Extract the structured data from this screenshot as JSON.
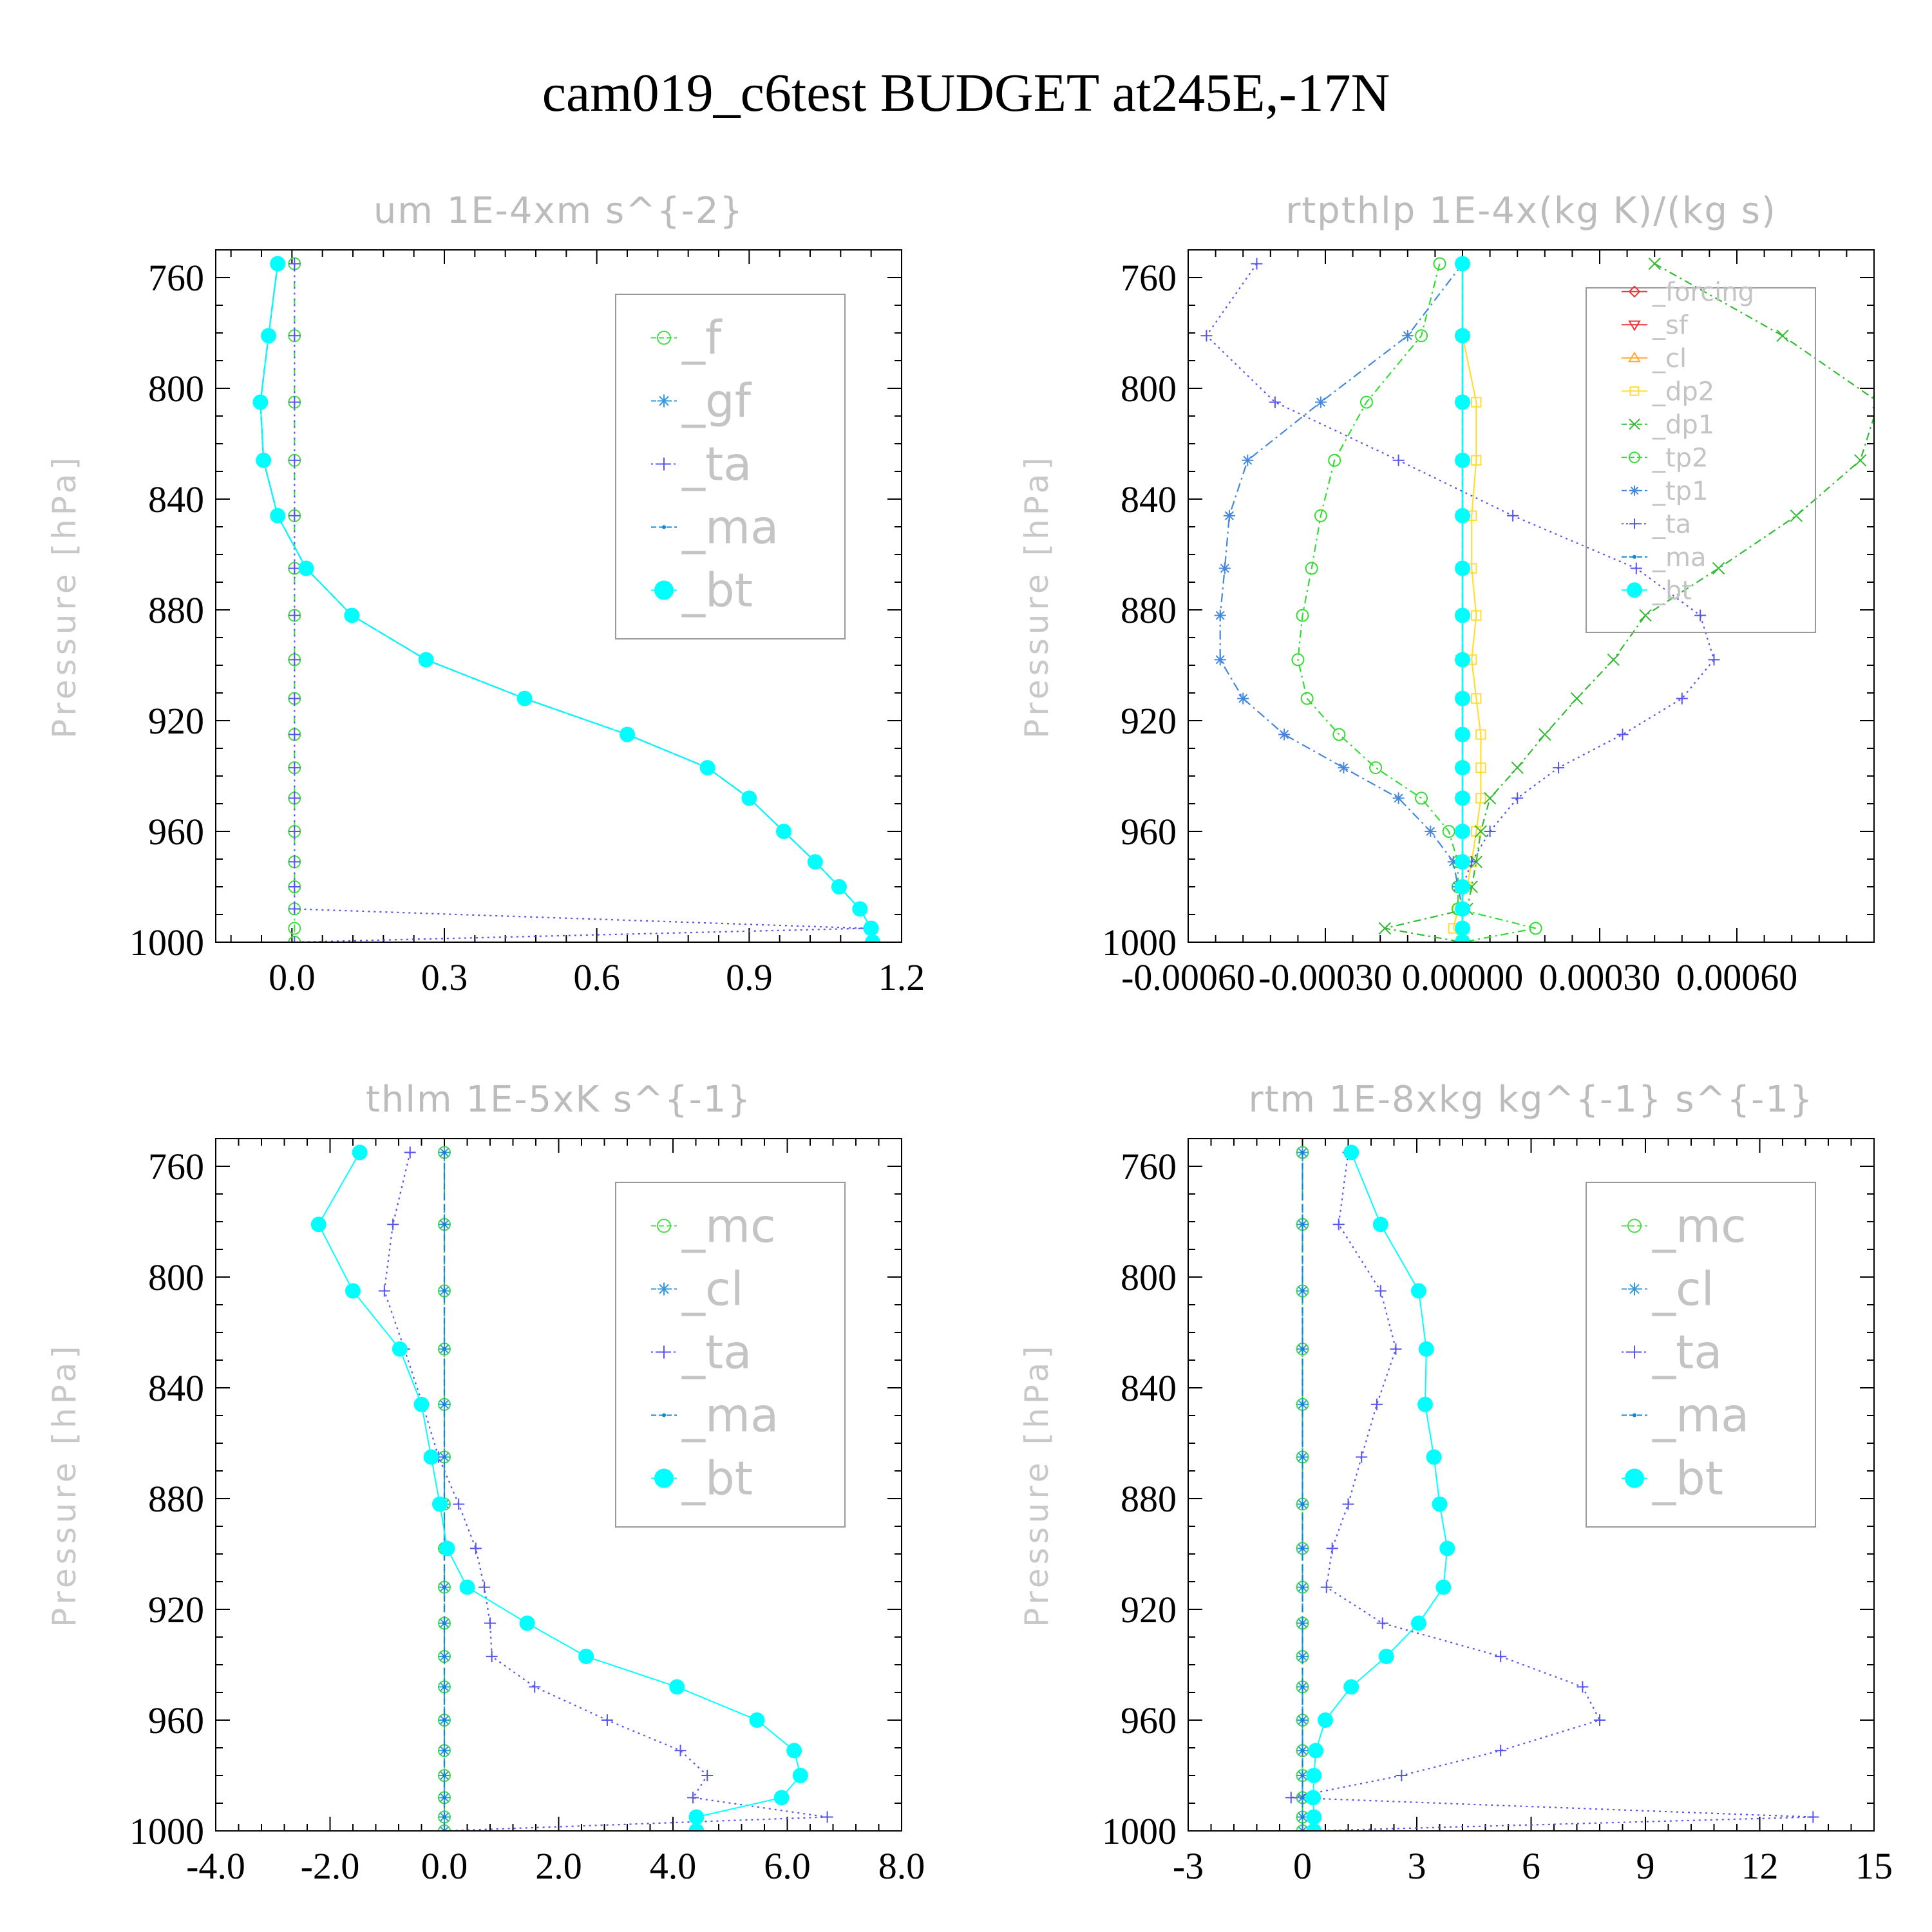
{
  "title": "cam019_c6test  BUDGET at245E,-17N",
  "chart_data": [
    {
      "type": "line",
      "title": "um   1E-4xm s^{-2}",
      "ylabel": "Pressure [hPa]",
      "xlabel": "",
      "xlim": [
        -0.15,
        1.2
      ],
      "ylim": [
        1000,
        750
      ],
      "xticks": [
        "0.0",
        "0.3",
        "0.6",
        "0.9",
        "1.2"
      ],
      "xtick_values": [
        0.0,
        0.3,
        0.6,
        0.9,
        1.2
      ],
      "yticks": [
        "760",
        "800",
        "840",
        "880",
        "920",
        "960",
        "1000"
      ],
      "ytick_values": [
        760,
        800,
        840,
        880,
        920,
        960,
        1000
      ],
      "legend_placement": "top-right",
      "pressure": [
        755,
        781,
        805,
        826,
        846,
        865,
        882,
        898,
        912,
        925,
        937,
        948,
        960,
        971,
        980,
        988,
        995,
        1000
      ],
      "series": [
        {
          "name": "_f",
          "color": "#44dd44",
          "marker": "circle-open",
          "dash": "12,6,3,6",
          "values": [
            0.005,
            0.005,
            0.005,
            0.005,
            0.005,
            0.005,
            0.005,
            0.005,
            0.005,
            0.005,
            0.005,
            0.005,
            0.005,
            0.005,
            0.005,
            0.005,
            0.005,
            0.005
          ]
        },
        {
          "name": "_gf",
          "color": "#3399dd",
          "marker": "star",
          "dash": "14,6",
          "values": [
            -0.028,
            -0.046,
            -0.062,
            -0.056,
            -0.028,
            0.028,
            0.118,
            0.264,
            0.458,
            0.66,
            0.818,
            0.9,
            0.968,
            1.03,
            1.077,
            1.118,
            1.14,
            1.143
          ]
        },
        {
          "name": "_ta",
          "color": "#5555ee",
          "marker": "plus",
          "dash": "3,6",
          "values": [
            0.005,
            0.005,
            0.005,
            0.005,
            0.005,
            0.005,
            0.005,
            0.005,
            0.005,
            0.005,
            0.005,
            0.005,
            0.005,
            0.005,
            0.005,
            0.005,
            1.13,
            0.005
          ]
        },
        {
          "name": "_ma",
          "color": "#1188cc",
          "marker": "dot",
          "dash": "10,6",
          "values": [
            -0.028,
            -0.046,
            -0.062,
            -0.056,
            -0.028,
            0.028,
            0.118,
            0.264,
            0.458,
            0.66,
            0.818,
            0.9,
            0.968,
            1.03,
            1.077,
            1.118,
            1.14,
            1.143
          ]
        },
        {
          "name": "_bt",
          "color": "#00ffff",
          "marker": "filled-circle",
          "dash": "",
          "values": [
            -0.028,
            -0.046,
            -0.062,
            -0.056,
            -0.028,
            0.028,
            0.118,
            0.264,
            0.458,
            0.66,
            0.818,
            0.9,
            0.968,
            1.03,
            1.077,
            1.118,
            1.14,
            1.143
          ]
        }
      ]
    },
    {
      "type": "line",
      "title": "rtpthlp   1E-4x(kg K)/(kg s)",
      "ylabel": "Pressure [hPa]",
      "xlabel": "",
      "xlim": [
        -0.0006,
        0.0009
      ],
      "ylim": [
        1000,
        750
      ],
      "xticks": [
        "-0.00060",
        "-0.00030",
        "0.00000",
        "0.00030",
        "0.00060"
      ],
      "xtick_values": [
        -0.0006,
        -0.0003,
        0.0,
        0.0003,
        0.0006
      ],
      "yticks": [
        "760",
        "800",
        "840",
        "880",
        "920",
        "960",
        "1000"
      ],
      "ytick_values": [
        760,
        800,
        840,
        880,
        920,
        960,
        1000
      ],
      "legend_placement": "top-right",
      "pressure": [
        755,
        781,
        805,
        826,
        846,
        865,
        882,
        898,
        912,
        925,
        937,
        948,
        960,
        971,
        980,
        988,
        995,
        1000
      ],
      "series": [
        {
          "name": "_forcing",
          "color": "#ee3333",
          "marker": "diamond",
          "dash": "",
          "values": [
            0,
            0,
            0,
            0,
            0,
            0,
            0,
            0,
            0,
            0,
            0,
            0,
            0,
            0,
            0,
            0,
            0,
            0
          ]
        },
        {
          "name": "_sf",
          "color": "#ee3333",
          "marker": "triangle-down",
          "dash": "",
          "values": [
            0,
            0,
            0,
            0,
            0,
            0,
            0,
            0,
            0,
            0,
            0,
            0,
            0,
            0,
            0,
            0,
            0,
            0
          ]
        },
        {
          "name": "_cl",
          "color": "#ffaa33",
          "marker": "triangle-up",
          "dash": "",
          "values": [
            0,
            0,
            0,
            0,
            0,
            0,
            0,
            0,
            0,
            0,
            0,
            0,
            0,
            0,
            0,
            0,
            0,
            0
          ]
        },
        {
          "name": "_dp2",
          "color": "#ffdd33",
          "marker": "square",
          "dash": "",
          "values": [
            0,
            0,
            3e-05,
            3e-05,
            2e-05,
            2e-05,
            3e-05,
            2e-05,
            3e-05,
            4e-05,
            4e-05,
            4e-05,
            3e-05,
            2e-05,
            1e-05,
            -1e-05,
            -2e-05,
            0
          ]
        },
        {
          "name": "_dp1",
          "color": "#33bb33",
          "marker": "x",
          "dash": "12,6,3,6",
          "values": [
            0.00042,
            0.0007,
            0.00091,
            0.00087,
            0.00073,
            0.00056,
            0.0004,
            0.00033,
            0.00025,
            0.00018,
            0.00012,
            6e-05,
            4e-05,
            3e-05,
            2e-05,
            1e-05,
            -0.00017,
            0
          ]
        },
        {
          "name": "_tp2",
          "color": "#33dd33",
          "marker": "circle-open",
          "dash": "12,6,3,6",
          "values": [
            -5e-05,
            -9e-05,
            -0.00021,
            -0.00028,
            -0.00031,
            -0.00033,
            -0.00035,
            -0.00036,
            -0.00034,
            -0.00027,
            -0.00019,
            -9e-05,
            -3e-05,
            -1e-05,
            -1e-05,
            -1e-05,
            0.00016,
            0
          ]
        },
        {
          "name": "_tp1",
          "color": "#4488dd",
          "marker": "star",
          "dash": "14,6,3,6",
          "values": [
            0,
            -0.00012,
            -0.00031,
            -0.00047,
            -0.00051,
            -0.00052,
            -0.00053,
            -0.00053,
            -0.00048,
            -0.00039,
            -0.00026,
            -0.00014,
            -7e-05,
            -2e-05,
            -1e-05,
            0,
            0,
            0
          ]
        },
        {
          "name": "_ta",
          "color": "#5555ee",
          "marker": "plus",
          "dash": "3,6",
          "values": [
            -0.00045,
            -0.00056,
            -0.00041,
            -0.00014,
            0.00011,
            0.00038,
            0.00052,
            0.00055,
            0.00048,
            0.00035,
            0.00021,
            0.00012,
            6e-05,
            2e-05,
            0,
            0,
            0,
            0
          ]
        },
        {
          "name": "_ma",
          "color": "#1188cc",
          "marker": "dot",
          "dash": "10,6",
          "values": [
            0,
            0,
            0,
            0,
            0,
            0,
            0,
            0,
            0,
            0,
            0,
            0,
            0,
            0,
            0,
            0,
            0,
            0
          ]
        },
        {
          "name": "_bt",
          "color": "#00ffff",
          "marker": "filled-circle",
          "dash": "",
          "values": [
            0,
            0,
            0,
            0,
            0,
            0,
            0,
            0,
            0,
            0,
            0,
            0,
            0,
            0,
            0,
            0,
            0,
            0
          ]
        }
      ]
    },
    {
      "type": "line",
      "title": "thlm   1E-5xK s^{-1}",
      "ylabel": "Pressure [hPa]",
      "xlabel": "",
      "xlim": [
        -4.0,
        8.0
      ],
      "ylim": [
        1000,
        750
      ],
      "xticks": [
        "-4.0",
        "-2.0",
        "0.0",
        "2.0",
        "4.0",
        "6.0",
        "8.0"
      ],
      "xtick_values": [
        -4,
        -2,
        0,
        2,
        4,
        6,
        8
      ],
      "yticks": [
        "760",
        "800",
        "840",
        "880",
        "920",
        "960",
        "1000"
      ],
      "ytick_values": [
        760,
        800,
        840,
        880,
        920,
        960,
        1000
      ],
      "legend_placement": "top-right",
      "pressure": [
        755,
        781,
        805,
        826,
        846,
        865,
        882,
        898,
        912,
        925,
        937,
        948,
        960,
        971,
        980,
        988,
        995,
        1000
      ],
      "series": [
        {
          "name": "_mc",
          "color": "#44dd44",
          "marker": "circle-open",
          "dash": "12,6,3,6",
          "values": [
            0,
            0,
            0,
            0,
            0,
            0,
            0,
            0,
            0,
            0,
            0,
            0,
            0,
            0,
            0,
            0,
            0,
            0
          ]
        },
        {
          "name": "_cl",
          "color": "#3399dd",
          "marker": "star",
          "dash": "14,6",
          "values": [
            0,
            0,
            0,
            0,
            0,
            0,
            0,
            0,
            0,
            0,
            0,
            0,
            0,
            0,
            0,
            0,
            0,
            0
          ]
        },
        {
          "name": "_ta",
          "color": "#5555ee",
          "marker": "plus",
          "dash": "3,6",
          "values": [
            -0.6,
            -0.9,
            -1.05,
            -0.7,
            -0.38,
            -0.1,
            0.25,
            0.55,
            0.7,
            0.8,
            0.83,
            1.58,
            2.85,
            4.13,
            4.6,
            4.35,
            6.7,
            0
          ]
        },
        {
          "name": "_ma",
          "color": "#1188cc",
          "marker": "dot",
          "dash": "10,6",
          "values": [
            0,
            0,
            0,
            0,
            0,
            0,
            0,
            0,
            0,
            0,
            0,
            0,
            0,
            0,
            0,
            0,
            0,
            0
          ]
        },
        {
          "name": "_bt",
          "color": "#00ffff",
          "marker": "filled-circle",
          "dash": "",
          "values": [
            -1.48,
            -2.2,
            -1.6,
            -0.78,
            -0.4,
            -0.23,
            -0.08,
            0.05,
            0.4,
            1.45,
            2.48,
            4.07,
            5.47,
            6.12,
            6.23,
            5.9,
            4.41,
            4.41
          ]
        }
      ]
    },
    {
      "type": "line",
      "title": "rtm   1E-8xkg kg^{-1} s^{-1}",
      "ylabel": "Pressure [hPa]",
      "xlabel": "",
      "xlim": [
        -3,
        15
      ],
      "ylim": [
        1000,
        750
      ],
      "xticks": [
        "-3",
        "0",
        "3",
        "6",
        "9",
        "12",
        "15"
      ],
      "xtick_values": [
        -3,
        0,
        3,
        6,
        9,
        12,
        15
      ],
      "yticks": [
        "760",
        "800",
        "840",
        "880",
        "920",
        "960",
        "1000"
      ],
      "ytick_values": [
        760,
        800,
        840,
        880,
        920,
        960,
        1000
      ],
      "legend_placement": "top-right",
      "pressure": [
        755,
        781,
        805,
        826,
        846,
        865,
        882,
        898,
        912,
        925,
        937,
        948,
        960,
        971,
        980,
        988,
        995,
        1000
      ],
      "series": [
        {
          "name": "_mc",
          "color": "#44dd44",
          "marker": "circle-open",
          "dash": "12,6,3,6",
          "values": [
            0,
            0,
            0,
            0,
            0,
            0,
            0,
            0,
            0,
            0,
            0,
            0,
            0,
            0,
            0,
            0,
            0,
            0
          ]
        },
        {
          "name": "_cl",
          "color": "#3399dd",
          "marker": "star",
          "dash": "14,6",
          "values": [
            0,
            0,
            0,
            0,
            0,
            0,
            0,
            0,
            0,
            0,
            0,
            0,
            0,
            0,
            0,
            0,
            0,
            0
          ]
        },
        {
          "name": "_ta",
          "color": "#5555ee",
          "marker": "plus",
          "dash": "3,6",
          "values": [
            1.2,
            0.95,
            2.05,
            2.45,
            1.95,
            1.55,
            1.2,
            0.78,
            0.63,
            2.1,
            5.2,
            7.35,
            7.8,
            5.2,
            2.6,
            -0.3,
            13.4,
            0.3
          ]
        },
        {
          "name": "_ma",
          "color": "#1188cc",
          "marker": "dot",
          "dash": "10,6",
          "values": [
            0,
            0,
            0,
            0,
            0,
            0,
            0,
            0,
            0,
            0,
            0,
            0,
            0,
            0,
            0,
            0,
            0,
            0
          ]
        },
        {
          "name": "_bt",
          "color": "#00ffff",
          "marker": "filled-circle",
          "dash": "",
          "values": [
            1.28,
            2.05,
            3.05,
            3.25,
            3.22,
            3.45,
            3.6,
            3.8,
            3.7,
            3.05,
            2.2,
            1.28,
            0.6,
            0.35,
            0.3,
            0.28,
            0.3,
            0.3
          ]
        }
      ]
    }
  ]
}
